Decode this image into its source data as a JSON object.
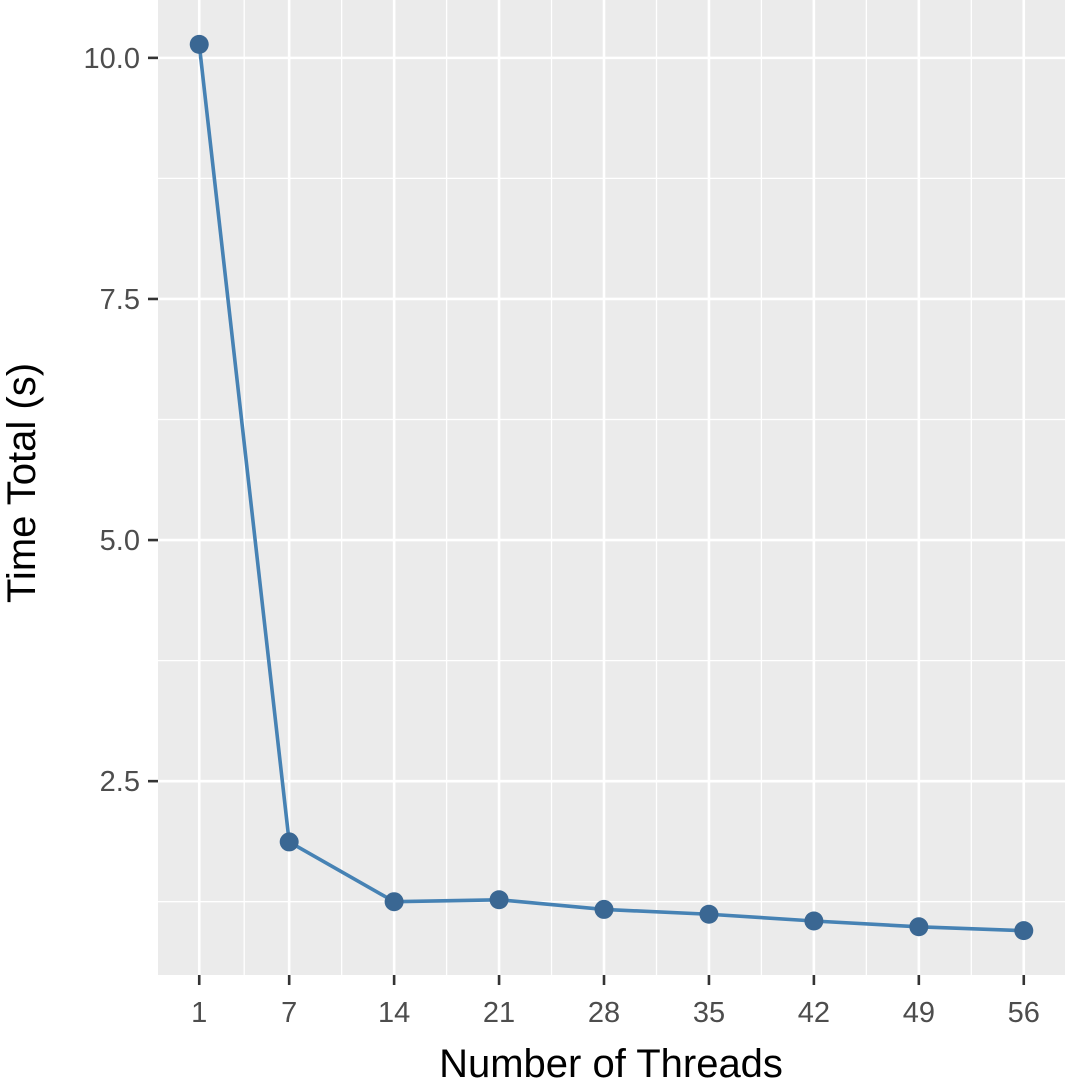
{
  "chart_data": {
    "type": "line",
    "title": "",
    "xlabel": "Number of Threads",
    "ylabel": "Time Total (s)",
    "x": [
      1,
      7,
      14,
      21,
      28,
      35,
      42,
      49,
      56
    ],
    "series": [
      {
        "values": [
          10.14,
          1.87,
          1.25,
          1.27,
          1.17,
          1.12,
          1.05,
          0.99,
          0.95
        ]
      }
    ],
    "xticks": [
      1,
      7,
      14,
      21,
      28,
      35,
      42,
      49,
      56
    ],
    "xtick_labels": [
      "1",
      "7",
      "14",
      "21",
      "28",
      "35",
      "42",
      "49",
      "56"
    ],
    "yticks": [
      2.5,
      5.0,
      7.5,
      10.0
    ],
    "ytick_labels": [
      "2.5",
      "5.0",
      "7.5",
      "10.0"
    ],
    "xlim": [
      -1.75,
      58.75
    ],
    "ylim": [
      0.49,
      10.6
    ],
    "grid": true,
    "legend": "none",
    "colors": {
      "panel": "#ebebeb",
      "grid": "#ffffff",
      "line": "#4682b4",
      "point": "#3a6793",
      "tick": "#333333"
    }
  }
}
